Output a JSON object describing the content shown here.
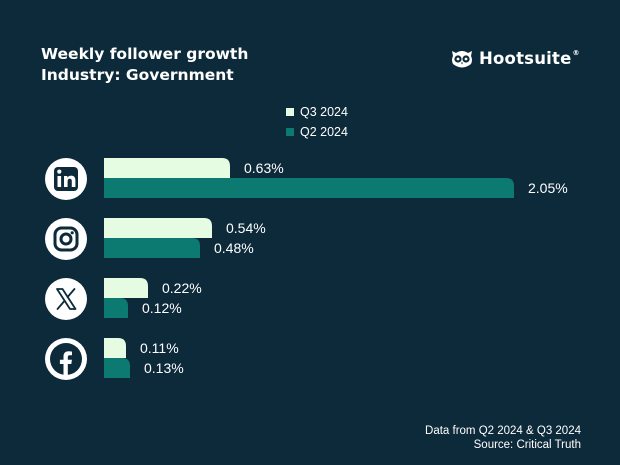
{
  "title": {
    "line1": "Weekly follower growth",
    "line2": "Industry: Government"
  },
  "brand": {
    "name": "Hootsuite",
    "reg": "®",
    "logo_icon": "owl-icon"
  },
  "colors": {
    "background": "#0d2a3a",
    "q3": "#e5fbe2",
    "q2": "#0d7a72",
    "label": "#ffffff"
  },
  "footer": {
    "line1": "Data from Q2 2024 & Q3 2024",
    "line2": "Source: Critical Truth"
  },
  "platforms": [
    {
      "name": "LinkedIn",
      "icon": "linkedin-icon"
    },
    {
      "name": "Instagram",
      "icon": "instagram-icon"
    },
    {
      "name": "X",
      "icon": "x-icon"
    },
    {
      "name": "Facebook",
      "icon": "facebook-icon"
    }
  ],
  "chart_data": {
    "type": "bar",
    "orientation": "horizontal",
    "title": "Weekly follower growth",
    "subtitle": "Industry: Government",
    "categories": [
      "LinkedIn",
      "Instagram",
      "X",
      "Facebook"
    ],
    "series": [
      {
        "name": "Q3 2024",
        "values": [
          0.63,
          0.54,
          0.22,
          0.11
        ],
        "labels": [
          "0.63%",
          "0.54%",
          "0.22%",
          "0.11%"
        ]
      },
      {
        "name": "Q2 2024",
        "values": [
          2.05,
          0.48,
          0.12,
          0.13
        ],
        "labels": [
          "2.05%",
          "0.48%",
          "0.12%",
          "0.13%"
        ]
      }
    ],
    "unit": "%",
    "legend": "top-center",
    "grid": false
  }
}
